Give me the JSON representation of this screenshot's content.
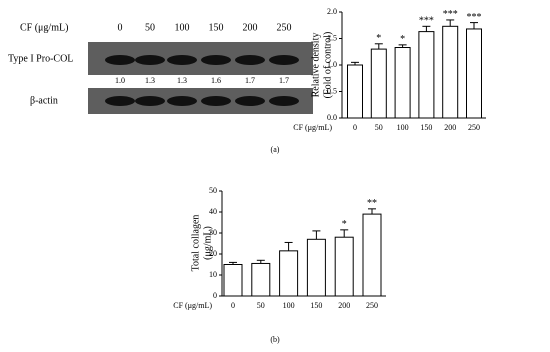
{
  "blot": {
    "condition_label": "CF (μg/mL)",
    "lanes": [
      "0",
      "50",
      "100",
      "150",
      "200",
      "250"
    ],
    "rows": [
      {
        "label": "Type I Pro-COL",
        "ratios": [
          "1.0",
          "1.3",
          "1.3",
          "1.6",
          "1.7",
          "1.7"
        ]
      },
      {
        "label": "β-actin"
      }
    ]
  },
  "chart_data": [
    {
      "type": "bar",
      "ylabel": [
        "Relative density",
        "(Fold of control)"
      ],
      "xlabel": "CF (μg/mL)",
      "categories": [
        "0",
        "50",
        "100",
        "150",
        "200",
        "250"
      ],
      "values": [
        1.0,
        1.3,
        1.33,
        1.63,
        1.73,
        1.68
      ],
      "errors": [
        0.05,
        0.1,
        0.05,
        0.1,
        0.12,
        0.12
      ],
      "annotations": [
        null,
        "*",
        "*",
        "***",
        "***",
        "***"
      ],
      "color": "#ffffff",
      "ylim": [
        0,
        2.0
      ],
      "yticks": [
        {
          "value": 0,
          "label": "0.0"
        },
        {
          "value": 0.5,
          "label": "0.5"
        },
        {
          "value": 1,
          "label": "1.0"
        },
        {
          "value": 1.5,
          "label": "1.5"
        },
        {
          "value": 2,
          "label": "2.0"
        }
      ]
    },
    {
      "type": "bar",
      "ylabel": [
        "Total collagen",
        "(μg/mL)"
      ],
      "xlabel": "CF (μg/mL)",
      "categories": [
        "0",
        "50",
        "100",
        "150",
        "200",
        "250"
      ],
      "values": [
        15,
        15.5,
        21.5,
        27,
        28,
        39
      ],
      "errors": [
        1,
        1.5,
        4,
        4,
        3.5,
        2.5
      ],
      "annotations": [
        null,
        null,
        null,
        null,
        "*",
        "**"
      ],
      "color": "#ffffff",
      "ylim": [
        0,
        50
      ],
      "yticks": [
        0,
        10,
        20,
        30,
        40,
        50
      ]
    }
  ],
  "captions": [
    "(a)",
    "(b)"
  ]
}
